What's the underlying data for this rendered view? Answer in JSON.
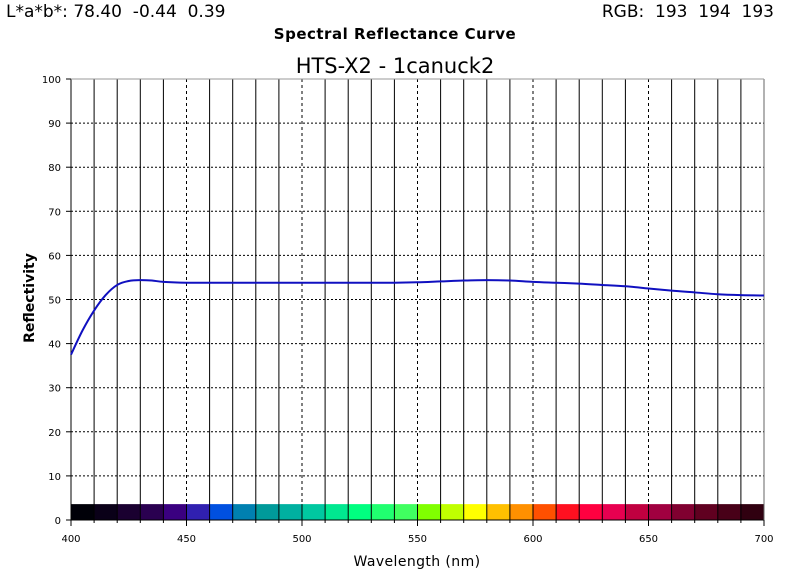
{
  "readouts": {
    "lab_label": "L*a*b*:",
    "lab_values": "78.40  -0.44  0.39",
    "rgb_label": "RGB:",
    "rgb_values": "193  194  193"
  },
  "chart_data": {
    "type": "line",
    "title": "Spectral Reflectance Curve",
    "subtitle": "HTS-X2 - 1canuck2",
    "xlabel": "Wavelength (nm)",
    "ylabel": "Reflectivity",
    "xlim": [
      400,
      700
    ],
    "ylim": [
      0,
      100
    ],
    "x_major_ticks": [
      400,
      450,
      500,
      550,
      600,
      650,
      700
    ],
    "y_ticks": [
      0,
      10,
      20,
      30,
      40,
      50,
      60,
      70,
      80,
      90,
      100
    ],
    "x_grid_step": 10,
    "grid": true,
    "line_color": "#1010c0",
    "series": [
      {
        "x": [
          400,
          405,
          410,
          415,
          420,
          425,
          430,
          435,
          440,
          450,
          460,
          470,
          480,
          490,
          500,
          510,
          520,
          530,
          540,
          550,
          560,
          570,
          580,
          590,
          600,
          610,
          620,
          630,
          640,
          650,
          660,
          670,
          680,
          690,
          700
        ],
        "values": [
          37.5,
          43,
          47.5,
          51,
          53.3,
          54.2,
          54.4,
          54.3,
          54.0,
          53.8,
          53.8,
          53.8,
          53.8,
          53.8,
          53.8,
          53.8,
          53.8,
          53.8,
          53.8,
          53.9,
          54.1,
          54.3,
          54.4,
          54.3,
          54.0,
          53.8,
          53.6,
          53.3,
          53.0,
          52.5,
          52.0,
          51.6,
          51.2,
          51.0,
          50.9
        ]
      }
    ],
    "spectrum_band": {
      "x": [
        400,
        410,
        420,
        430,
        440,
        450,
        460,
        470,
        480,
        490,
        500,
        510,
        520,
        530,
        540,
        550,
        560,
        570,
        580,
        590,
        600,
        610,
        620,
        630,
        640,
        650,
        660,
        670,
        680,
        690,
        700
      ],
      "colors": [
        "#000008",
        "#0a0018",
        "#1a0030",
        "#2a0050",
        "#3a0080",
        "#3020b0",
        "#0050e0",
        "#0080b0",
        "#009a9a",
        "#00b0a0",
        "#00c8a0",
        "#00e890",
        "#00ff80",
        "#20ff70",
        "#40ff60",
        "#80ff00",
        "#c0ff00",
        "#ffff00",
        "#ffc000",
        "#ff9000",
        "#ff5000",
        "#ff1020",
        "#ff0040",
        "#e80050",
        "#c00040",
        "#a00040",
        "#800030",
        "#600020",
        "#480018",
        "#300010",
        "#200008"
      ]
    }
  }
}
